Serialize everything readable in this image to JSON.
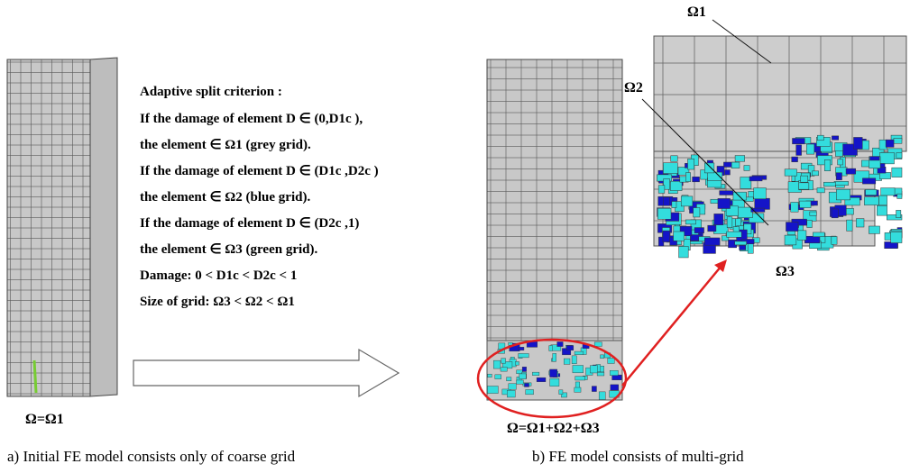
{
  "criterion": {
    "title": "Adaptive split criterion :",
    "lines": [
      "If the damage of element D ∈ (0,D1c ),",
      "the element ∈ Ω1 (grey grid).",
      "If the damage of element D ∈ (D1c ,D2c )",
      "the element ∈ Ω2 (blue grid).",
      "If the damage of element D ∈ (D2c ,1)",
      "the element ∈ Ω3 (green grid).",
      "Damage:  0 < D1c < D2c < 1",
      "Size of grid: Ω3 < Ω2 < Ω1"
    ]
  },
  "left_model": {
    "label": "Ω=Ω1",
    "caption": "a) Initial FE model consists only of coarse grid"
  },
  "right_model": {
    "label": "Ω=Ω1+Ω2+Ω3",
    "caption": "b) FE model consists of multi-grid",
    "zoom_labels": {
      "omega1": "Ω1",
      "omega2": "Ω2",
      "omega3": "Ω3"
    }
  }
}
